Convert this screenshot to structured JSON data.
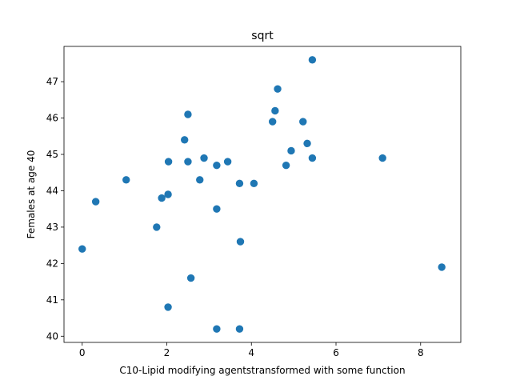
{
  "chart_data": {
    "type": "scatter",
    "title": "sqrt",
    "xlabel": "C10-Lipid modifying agentstransformed with some function",
    "ylabel": "Females at age 40",
    "xlim": [
      -0.43,
      8.95
    ],
    "ylim": [
      39.83,
      47.97
    ],
    "xticks": [
      0,
      2,
      4,
      6,
      8
    ],
    "yticks": [
      40,
      41,
      42,
      43,
      44,
      45,
      46,
      47
    ],
    "grid": false,
    "marker_color": "#1f77b4",
    "series": [
      {
        "points": [
          [
            0.0,
            42.4
          ],
          [
            0.32,
            43.7
          ],
          [
            1.04,
            44.3
          ],
          [
            1.76,
            43.0
          ],
          [
            1.88,
            43.8
          ],
          [
            2.03,
            43.9
          ],
          [
            2.04,
            44.8
          ],
          [
            2.03,
            40.8
          ],
          [
            2.42,
            45.4
          ],
          [
            2.5,
            46.1
          ],
          [
            2.5,
            44.8
          ],
          [
            2.57,
            41.6
          ],
          [
            2.78,
            44.3
          ],
          [
            2.88,
            44.9
          ],
          [
            3.18,
            44.7
          ],
          [
            3.18,
            43.5
          ],
          [
            3.18,
            40.2
          ],
          [
            3.44,
            44.8
          ],
          [
            3.72,
            44.2
          ],
          [
            3.74,
            42.6
          ],
          [
            3.72,
            40.2
          ],
          [
            4.06,
            44.2
          ],
          [
            4.5,
            45.9
          ],
          [
            4.56,
            46.2
          ],
          [
            4.62,
            46.8
          ],
          [
            4.82,
            44.7
          ],
          [
            4.94,
            45.1
          ],
          [
            5.22,
            45.9
          ],
          [
            5.32,
            45.3
          ],
          [
            5.44,
            47.6
          ],
          [
            5.44,
            44.9
          ],
          [
            7.1,
            44.9
          ],
          [
            8.5,
            41.9
          ]
        ]
      }
    ]
  }
}
